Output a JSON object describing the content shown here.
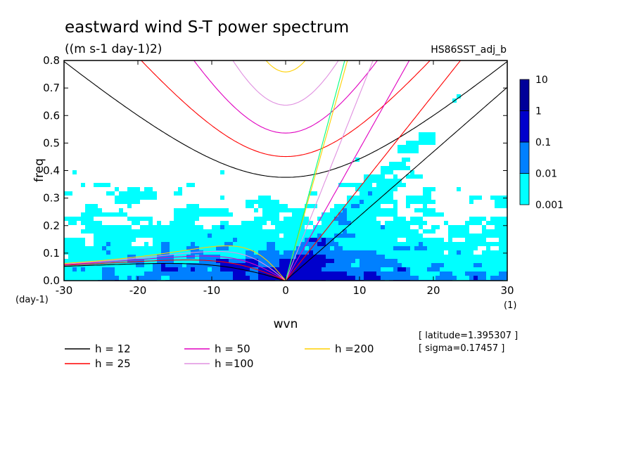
{
  "chart_data": {
    "type": "heatmap",
    "title": "eastward wind S-T power spectrum",
    "subtitle": "((m s-1 day-1)2)",
    "run_label": "HS86SST_adj_b",
    "xlabel": "wvn",
    "ylabel": "freq",
    "x_unit": "(1)",
    "y_unit": "(day-1)",
    "xlim": [
      -30,
      30
    ],
    "ylim": [
      0,
      0.8
    ],
    "x_ticks": [
      -30,
      -20,
      -10,
      0,
      10,
      20,
      30
    ],
    "x_tick_labels": [
      "-30",
      "-20",
      "-10",
      "0",
      "10",
      "20",
      "30"
    ],
    "y_ticks": [
      0,
      0.1,
      0.2,
      0.3,
      0.4,
      0.5,
      0.6,
      0.7,
      0.8
    ],
    "y_tick_labels": [
      "0.0",
      "0.1",
      "0.2",
      "0.3",
      "0.4",
      "0.5",
      "0.6",
      "0.7",
      "0.8"
    ],
    "colorbar": {
      "levels": [
        "0.001",
        "0.01",
        "0.1",
        "1",
        "10"
      ],
      "colors": [
        "#00ffff",
        "#0080ff",
        "#0000cc",
        "#000099",
        "#5500aa"
      ],
      "scale": "log"
    },
    "contour_colors": {
      "lightest": "#00ffff",
      "light": "#0080ff",
      "dark": "#0000cc"
    },
    "dispersion_curves": [
      {
        "label": "h = 12",
        "h": 12,
        "color": "#000000"
      },
      {
        "label": "h = 25",
        "h": 25,
        "color": "#ff0000"
      },
      {
        "label": "h = 50",
        "h": 50,
        "color": "#e000c0"
      },
      {
        "label": "h =100",
        "h": 100,
        "color": "#e090e0"
      },
      {
        "label": "h =200",
        "h": 200,
        "color": "#ffd000"
      }
    ],
    "kelvin_line_color": "#00ff80",
    "annotations": [
      "[ latitude=1.395307 ]",
      "[ sigma=0.17457 ]"
    ]
  }
}
